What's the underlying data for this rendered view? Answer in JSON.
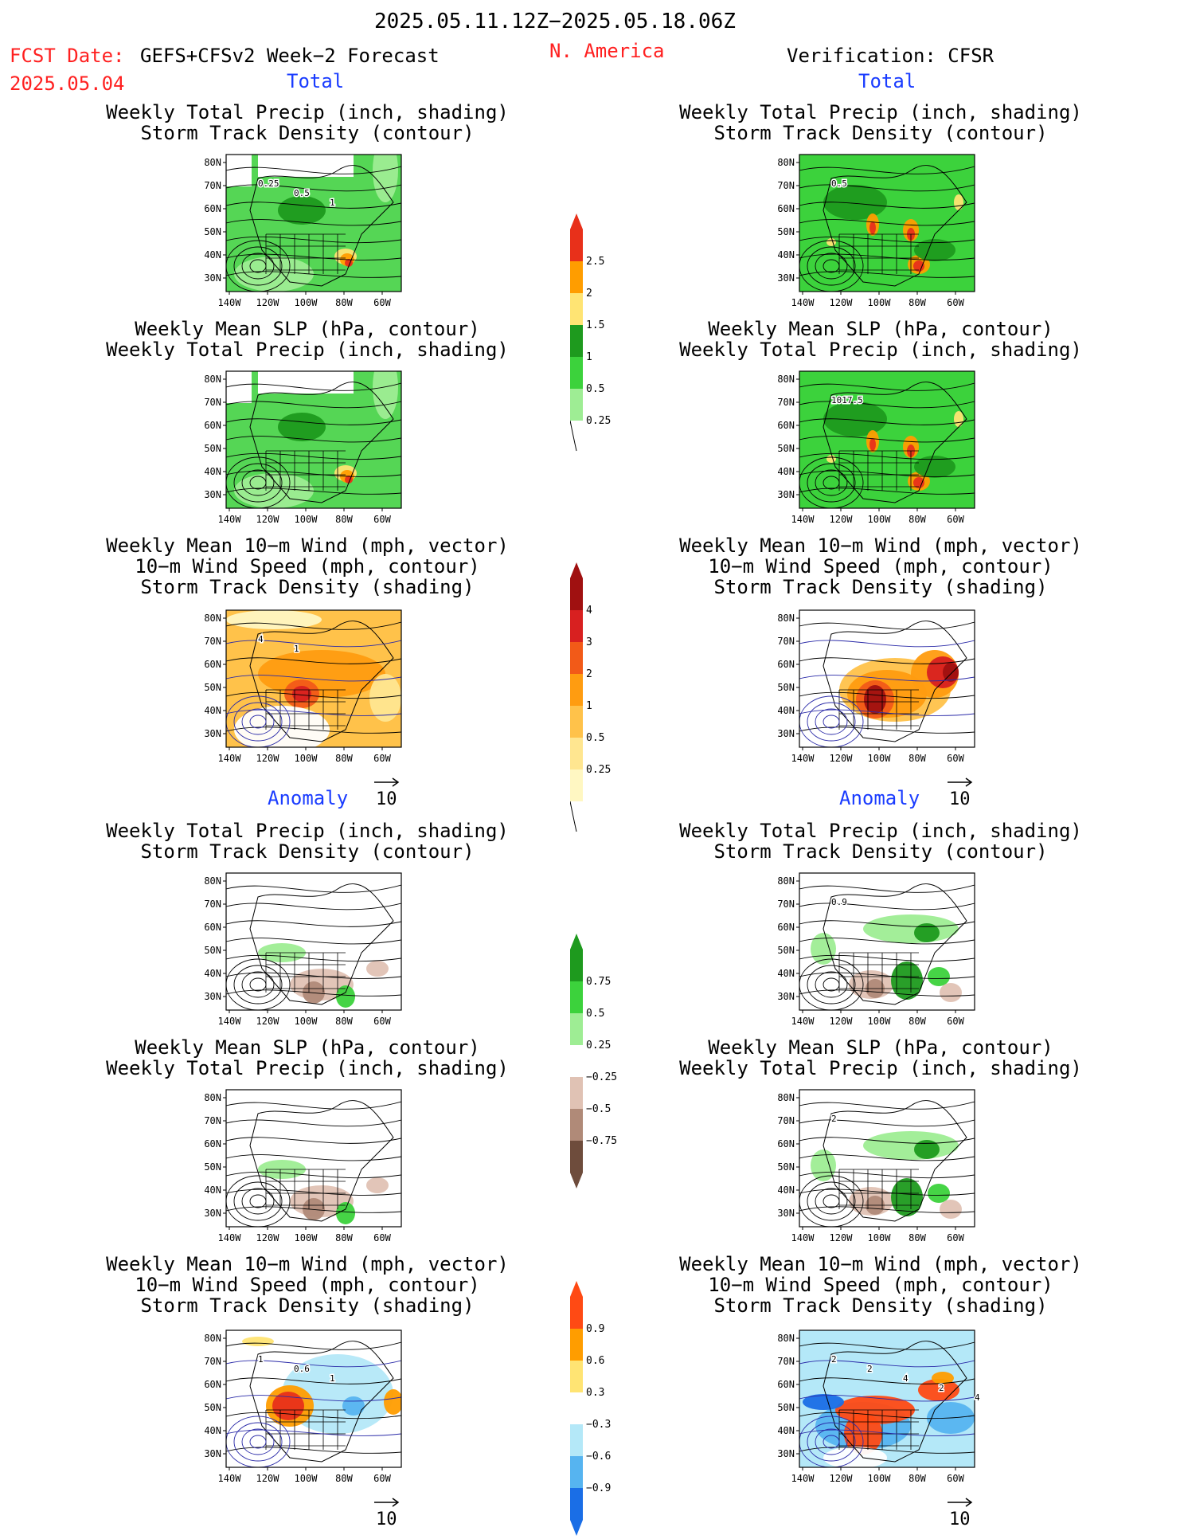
{
  "header": {
    "period": "2025.05.11.12Z−2025.05.18.06Z",
    "fcst_date_label": "FCST Date:",
    "fcst_model": "GEFS+CFSv2 Week−2 Forecast",
    "fcst_date": "2025.05.04",
    "region": "N. America",
    "verification": "Verification: CFSR"
  },
  "sections": {
    "total_left": "Total",
    "total_right": "Total",
    "anomaly_left": "Anomaly",
    "anomaly_right": "Anomaly"
  },
  "titles": {
    "precip_storm": [
      "Weekly Total Precip (inch, shading)",
      "Storm Track Density (contour)"
    ],
    "slp_precip": [
      "Weekly Mean SLP (hPa, contour)",
      "Weekly Total Precip (inch, shading)"
    ],
    "wind_storm": [
      "Weekly Mean 10−m Wind (mph, vector)",
      "10−m Wind Speed (mph, contour)",
      "Storm Track Density (shading)"
    ]
  },
  "axes": {
    "lat": [
      "80N",
      "70N",
      "60N",
      "50N",
      "40N",
      "30N"
    ],
    "lon": [
      "140W",
      "120W",
      "100W",
      "80W",
      "60W"
    ]
  },
  "vector_ref": "10",
  "contour_labels": {
    "p1_left": [
      "0.25",
      "0.5",
      "1"
    ],
    "p1_right": [
      "0.5"
    ],
    "p2_right": [
      "1017.5"
    ],
    "p3_left": [
      "4",
      "1"
    ],
    "p4_right": [
      "0.9"
    ],
    "p5_right": [
      "2"
    ],
    "p6_left": [
      "1",
      "0.6",
      "1"
    ],
    "p6_right": [
      "2",
      "2",
      "4",
      "2",
      "4"
    ]
  },
  "colorbars": {
    "precip_total": {
      "labels": [
        "2.5",
        "2",
        "1.5",
        "1",
        "0.5",
        "0.25"
      ],
      "colors": [
        "#e8301a",
        "#ff9d00",
        "#ffe473",
        "#1e9a1e",
        "#3cd23c",
        "#9eed94"
      ]
    },
    "storm_total": {
      "labels": [
        "4",
        "3",
        "2",
        "1",
        "0.5",
        "0.25"
      ],
      "colors": [
        "#a01010",
        "#d82020",
        "#f25a18",
        "#ff9c10",
        "#ffc24a",
        "#ffe690",
        "#fff7c2"
      ]
    },
    "precip_anom": {
      "labels": [
        "0.75",
        "0.5",
        "0.25",
        "−0.25",
        "−0.5",
        "−0.75"
      ],
      "colors": [
        "#1e9a1e",
        "#3cd23c",
        "#9eed94",
        "#ffffff",
        "#e0c2b4",
        "#b08a78",
        "#6e4c3c"
      ]
    },
    "storm_anom": {
      "labels": [
        "0.9",
        "0.6",
        "0.3",
        "−0.3",
        "−0.6",
        "−0.9"
      ],
      "colors": [
        "#ff4a14",
        "#ff9d00",
        "#ffe473",
        "#ffffff",
        "#b4e8f8",
        "#56b4f0",
        "#1a6ee6"
      ]
    }
  }
}
